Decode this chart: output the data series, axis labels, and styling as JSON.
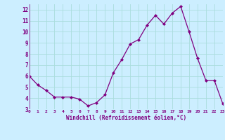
{
  "x": [
    0,
    1,
    2,
    3,
    4,
    5,
    6,
    7,
    8,
    9,
    10,
    11,
    12,
    13,
    14,
    15,
    16,
    17,
    18,
    19,
    20,
    21,
    22,
    23
  ],
  "y": [
    6.0,
    5.2,
    4.7,
    4.1,
    4.1,
    4.1,
    3.9,
    3.3,
    3.6,
    4.3,
    6.3,
    7.5,
    8.9,
    9.3,
    10.6,
    11.5,
    10.7,
    11.7,
    12.3,
    10.0,
    7.6,
    5.6,
    5.6,
    3.5
  ],
  "line_color": "#800080",
  "marker": "D",
  "marker_size": 2.0,
  "bg_color": "#cceeff",
  "grid_color": "#aadddd",
  "xlabel": "Windchill (Refroidissement éolien,°C)",
  "xlabel_color": "#800080",
  "tick_color": "#800080",
  "ylim": [
    3,
    12.5
  ],
  "yticks": [
    3,
    4,
    5,
    6,
    7,
    8,
    9,
    10,
    11,
    12
  ],
  "xlim": [
    0,
    23
  ],
  "xticks": [
    0,
    1,
    2,
    3,
    4,
    5,
    6,
    7,
    8,
    9,
    10,
    11,
    12,
    13,
    14,
    15,
    16,
    17,
    18,
    19,
    20,
    21,
    22,
    23
  ]
}
